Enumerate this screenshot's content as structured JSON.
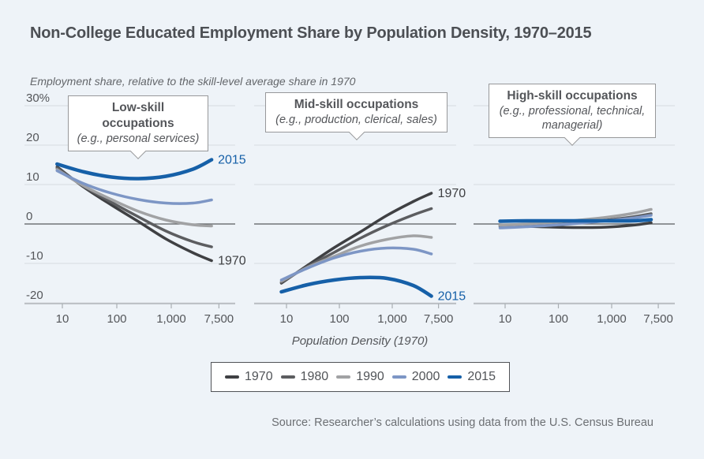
{
  "colors": {
    "background": "#eef3f8",
    "grid": "#d7dbdf",
    "zero_line": "#595b5e",
    "axis": "#a8adb2",
    "text": "#54565a",
    "muted_text": "#6c6f73",
    "callout_border": "#97989a",
    "accent_2015": "#1660a8"
  },
  "chart_data": {
    "type": "line",
    "title": "Non-College Educated Employment Share by Population Density, 1970–2015",
    "subtitle": "Employment share, relative to the skill-level average share in 1970",
    "source": "Source: Researcher’s calculations using data from the U.S. Census Bureau",
    "x": {
      "label": "Population Density (1970)",
      "scale": "log",
      "ticks": [
        10,
        100,
        1000,
        7500
      ],
      "tick_labels": [
        "10",
        "100",
        "1,000",
        "7,500"
      ]
    },
    "y": {
      "ticks": [
        30,
        20,
        10,
        0,
        -10,
        -20
      ],
      "tick_labels": [
        "30%",
        "20",
        "10",
        "0",
        "-10",
        "-20"
      ],
      "range": [
        -20,
        30
      ]
    },
    "grid": true,
    "sample_densities": [
      8,
      25,
      80,
      250,
      800,
      2500,
      5500
    ],
    "series_meta": [
      {
        "name": "1970",
        "color": "#3f4043",
        "width": 3.5
      },
      {
        "name": "1980",
        "color": "#5c5d60",
        "width": 3.5
      },
      {
        "name": "1990",
        "color": "#a1a2a4",
        "width": 3.5
      },
      {
        "name": "2000",
        "color": "#7d96c5",
        "width": 3.5
      },
      {
        "name": "2015",
        "color": "#1660a8",
        "width": 4.5
      }
    ],
    "legend": {
      "position": "bottom",
      "entries": [
        "1970",
        "1980",
        "1990",
        "2000",
        "2015"
      ]
    },
    "panels": [
      {
        "id": "low-skill",
        "callout_title": "Low-skill occupations",
        "callout_subtitle": "(e.g., personal services)",
        "series": {
          "1970": [
            14.5,
            9.3,
            4.8,
            0.6,
            -3.8,
            -7.3,
            -9.3
          ],
          "1980": [
            14.2,
            9.5,
            5.5,
            1.8,
            -1.8,
            -4.5,
            -5.8
          ],
          "1990": [
            13.8,
            9.6,
            6.2,
            3.2,
            1.0,
            -0.2,
            -0.5
          ],
          "2000": [
            13.5,
            10.2,
            7.8,
            6.2,
            5.3,
            5.3,
            6.1
          ],
          "2015": [
            15.2,
            13.2,
            11.9,
            11.5,
            12.1,
            13.9,
            16.3
          ]
        },
        "end_labels": [
          {
            "series": "2015"
          },
          {
            "series": "1970"
          }
        ]
      },
      {
        "id": "mid-skill",
        "callout_title": "Mid-skill occupations",
        "callout_subtitle": "(e.g., production, clerical, sales)",
        "series": {
          "1970": [
            -15.0,
            -10.5,
            -6.0,
            -2.0,
            2.2,
            5.7,
            7.8
          ],
          "1980": [
            -14.8,
            -10.8,
            -7.2,
            -3.6,
            -0.4,
            2.3,
            3.9
          ],
          "1990": [
            -14.5,
            -11.0,
            -8.2,
            -5.6,
            -3.9,
            -3.0,
            -3.4
          ],
          "2000": [
            -14.2,
            -11.2,
            -8.6,
            -6.9,
            -6.1,
            -6.4,
            -7.6
          ],
          "2015": [
            -17.2,
            -15.4,
            -14.2,
            -13.6,
            -13.8,
            -15.6,
            -18.3
          ]
        },
        "end_labels": [
          {
            "series": "1970"
          },
          {
            "series": "2015"
          }
        ]
      },
      {
        "id": "high-skill",
        "callout_title": "High-skill occupations",
        "callout_subtitle": "(e.g., professional, technical, managerial)",
        "series": {
          "1970": [
            -0.4,
            -0.6,
            -0.8,
            -0.9,
            -0.8,
            -0.3,
            0.3
          ],
          "1980": [
            -0.6,
            -0.4,
            -0.1,
            0.4,
            1.0,
            1.8,
            2.6
          ],
          "1990": [
            -0.3,
            0.0,
            0.4,
            1.0,
            1.7,
            2.7,
            3.7
          ],
          "2000": [
            -1.0,
            -0.7,
            -0.3,
            0.2,
            0.8,
            1.5,
            2.2
          ],
          "2015": [
            0.7,
            0.8,
            0.8,
            0.8,
            0.8,
            0.8,
            1.1
          ]
        },
        "end_labels": []
      }
    ]
  }
}
